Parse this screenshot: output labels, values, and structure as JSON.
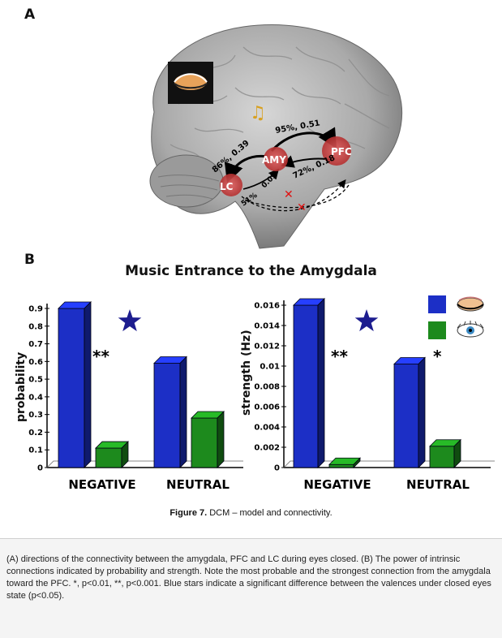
{
  "panels": {
    "a_label": "A",
    "b_label": "B"
  },
  "brain_labels": {
    "amy": "AMY",
    "pfc": "PFC",
    "lc": "LC",
    "conn_amy_pfc": "95%, 0.51",
    "conn_amy_lc": "86%, 0.39",
    "conn_pfc_amy": "72%, 0.18",
    "conn_lc_amy": "0.09",
    "conn_lc_pfc": "51%"
  },
  "chart_title": "Music Entrance to the Amygdala",
  "chart_data": [
    {
      "type": "bar",
      "categories": [
        "NEGATIVE",
        "NEUTRAL"
      ],
      "series": [
        {
          "values": [
            0.9,
            0.59
          ],
          "color": "#1c2fc6"
        },
        {
          "values": [
            0.11,
            0.28
          ],
          "color": "#1d8a1d"
        }
      ],
      "ylabel": "probability",
      "ylim": [
        0,
        0.9
      ],
      "yticks": [
        "0",
        "0.1",
        "0.2",
        "0.3",
        "0.4",
        "0.5",
        "0.6",
        "0.7",
        "0.8",
        "0.9"
      ],
      "annotations": [
        "**"
      ]
    },
    {
      "type": "bar",
      "categories": [
        "NEGATIVE",
        "NEUTRAL"
      ],
      "series": [
        {
          "values": [
            0.016,
            0.0102
          ],
          "color": "#1c2fc6"
        },
        {
          "values": [
            0.0003,
            0.0021
          ],
          "color": "#1d8a1d"
        }
      ],
      "ylabel": "strength (Hz)",
      "ylim": [
        0,
        0.016
      ],
      "yticks": [
        "0",
        "0.002",
        "0.004",
        "0.006",
        "0.008",
        "0.01",
        "0.012",
        "0.014",
        "0.016"
      ],
      "annotations": [
        "**",
        "*"
      ]
    }
  ],
  "legend": [
    {
      "color": "#1c2fc6",
      "icon": "eye-closed-icon"
    },
    {
      "color": "#1d8a1d",
      "icon": "eye-open-icon"
    }
  ],
  "caption_title": {
    "label": "Figure 7.",
    "text": " DCM – model and connectivity."
  },
  "caption_body": "(A) directions of the connectivity between the amygdala, PFC and LC during eyes closed. (B) The power of intrinsic connections indicated by probability and strength. Note the most probable and the strongest connection from the amygdala toward the PFC. *, p<0.01, **, p<0.001. Blue stars indicate a significant difference between the valences under closed eyes state (p<0.05)."
}
